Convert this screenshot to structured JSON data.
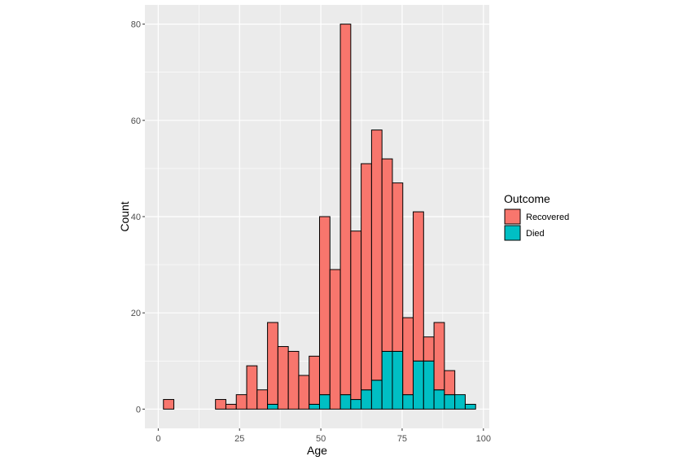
{
  "chart_data": {
    "type": "bar",
    "title": "",
    "xlabel": "Age",
    "ylabel": "Count",
    "xlim": [
      -4.1,
      101.8
    ],
    "ylim": [
      -4,
      84
    ],
    "x_ticks": [
      0,
      25,
      50,
      75,
      100
    ],
    "y_ticks": [
      0,
      20,
      40,
      60,
      80
    ],
    "bin_width": 3.2,
    "grid": true,
    "stacked": true,
    "legend": {
      "title": "Outcome",
      "position": "right"
    },
    "colors": {
      "Recovered": "#f8766d",
      "Died": "#00bfc4",
      "panel": "#ebebeb",
      "grid": "#ffffff"
    },
    "x_bin_centers": [
      3.2,
      6.4,
      9.6,
      12.8,
      16.0,
      19.2,
      22.4,
      25.6,
      28.8,
      32.0,
      35.2,
      38.4,
      41.6,
      44.8,
      48.0,
      51.2,
      54.4,
      57.6,
      60.8,
      64.0,
      67.2,
      70.4,
      73.6,
      76.8,
      80.0,
      83.2,
      86.4,
      89.6,
      92.8,
      96.0
    ],
    "series": [
      {
        "name": "Died",
        "values": [
          0,
          0,
          0,
          0,
          0,
          0,
          0,
          0,
          0,
          0,
          1,
          0,
          0,
          0,
          1,
          3,
          0,
          3,
          2,
          4,
          6,
          12,
          12,
          3,
          10,
          10,
          4,
          3,
          3,
          1
        ]
      },
      {
        "name": "Recovered",
        "values": [
          2,
          0,
          0,
          0,
          0,
          2,
          1,
          3,
          9,
          4,
          17,
          13,
          12,
          7,
          10,
          37,
          29,
          77,
          35,
          47,
          52,
          40,
          35,
          16,
          31,
          5,
          14,
          5,
          0,
          0
        ]
      }
    ]
  }
}
